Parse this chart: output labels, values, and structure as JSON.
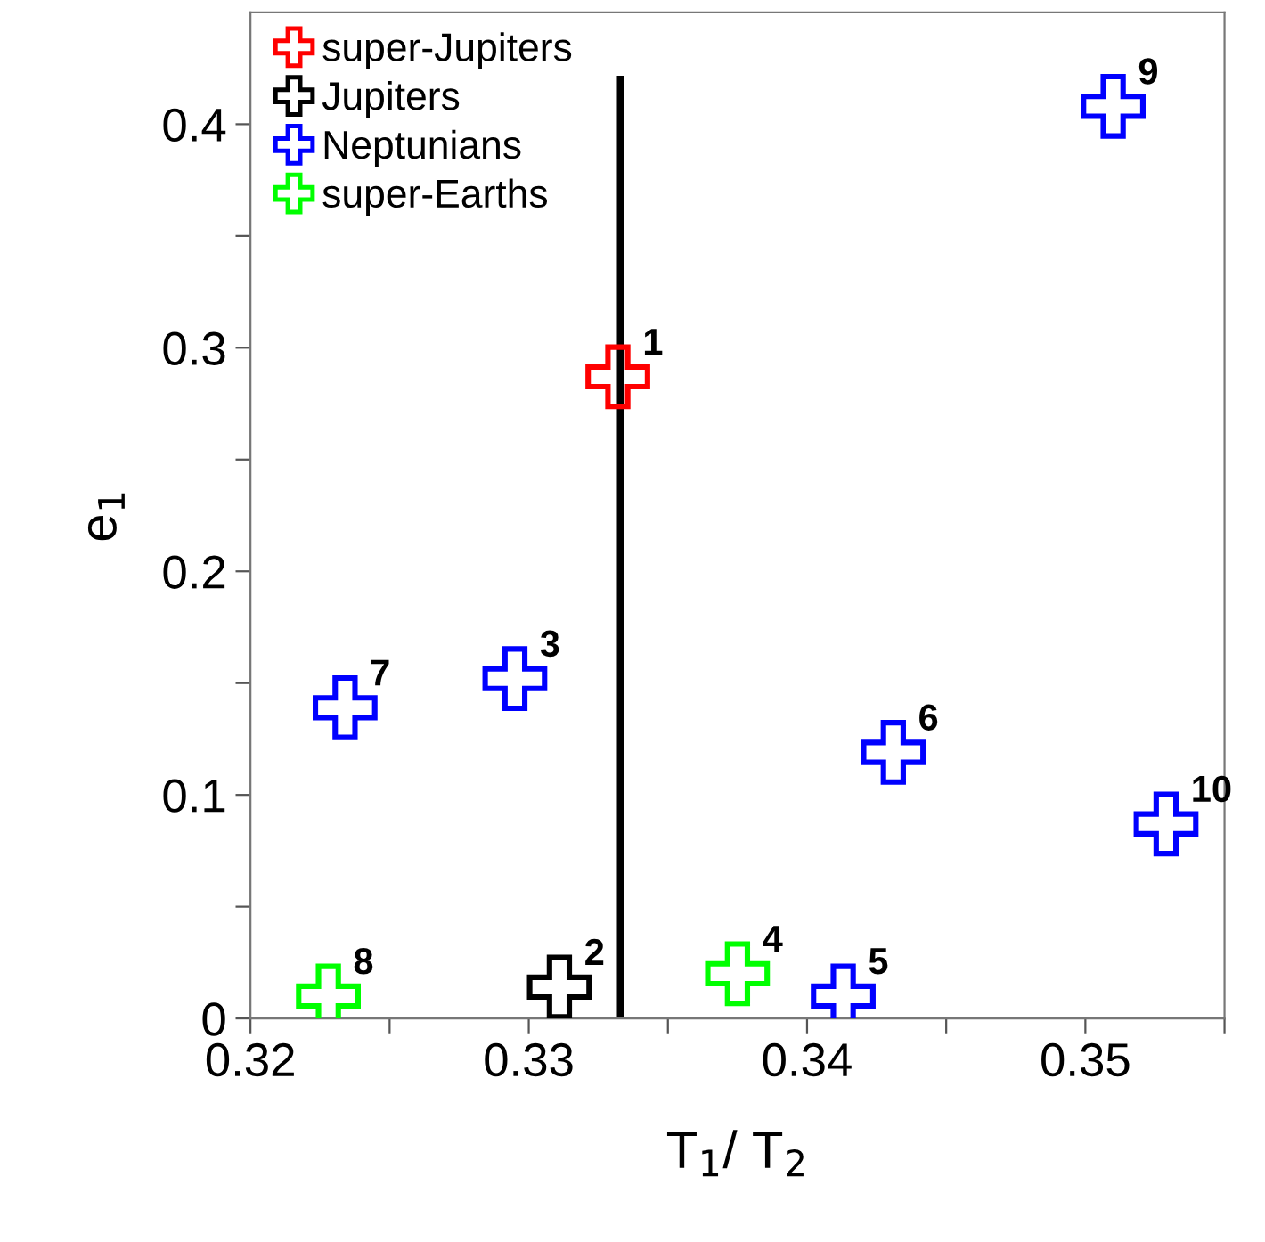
{
  "chart_data": {
    "type": "scatter",
    "xlabel": "T$_{1}$/ T$_{2}$",
    "ylabel": "e$_{1}$",
    "legend": "top left",
    "grid": false,
    "xlim": [
      0.32,
      0.355
    ],
    "ylim": [
      0,
      0.45
    ],
    "xticks": [
      0.32,
      {
        "value": 0.325,
        "label": null
      },
      0.33,
      {
        "value": 0.335,
        "label": null
      },
      0.34,
      {
        "value": 0.345,
        "label": null
      },
      0.35,
      {
        "value": 0.355,
        "label": null
      }
    ],
    "yticks": [
      0,
      {
        "value": 0.05,
        "label": null
      },
      0.1,
      {
        "value": 0.15,
        "label": null
      },
      0.2,
      {
        "value": 0.25,
        "label": null
      },
      0.3,
      {
        "value": 0.35,
        "label": null
      },
      0.4
    ],
    "series": [
      {
        "name": "super-Jupiters",
        "marker": "cross",
        "color": "#ff0000",
        "x": [
          0.3332
        ],
        "values": [
          0.287
        ]
      },
      {
        "name": "Jupiters",
        "marker": "cross",
        "color": "#000000",
        "x": [
          0.3311
        ],
        "values": [
          0.014
        ]
      },
      {
        "name": "Neptunians",
        "marker": "cross",
        "color": "#0000ff",
        "x": [
          0.3295,
          0.3413,
          0.3431,
          0.3234,
          0.351,
          0.3529
        ],
        "values": [
          0.152,
          0.01,
          0.119,
          0.139,
          0.408,
          0.087
        ]
      },
      {
        "name": "super-Earths",
        "marker": "cross",
        "color": "#00ff00",
        "x": [
          0.3375,
          0.3228
        ],
        "values": [
          0.02,
          0.01
        ]
      },
      {
        "type": "line",
        "marker": "none",
        "color": "#000000",
        "x": [
          0.3333,
          0.3333
        ],
        "values": [
          0,
          0.42
        ]
      }
    ],
    "annotations": [
      {
        "text": "1",
        "x": 0.3332,
        "y": 0.287
      },
      {
        "text": "2",
        "x": 0.3311,
        "y": 0.014
      },
      {
        "text": "3",
        "x": 0.3295,
        "y": 0.152
      },
      {
        "text": "4",
        "x": 0.3375,
        "y": 0.02
      },
      {
        "text": "5",
        "x": 0.3413,
        "y": 0.01
      },
      {
        "text": "6",
        "x": 0.3431,
        "y": 0.119
      },
      {
        "text": "7",
        "x": 0.3234,
        "y": 0.139
      },
      {
        "text": "8",
        "x": 0.3228,
        "y": 0.01
      },
      {
        "text": "9",
        "x": 0.351,
        "y": 0.408
      },
      {
        "text": "10",
        "x": 0.3529,
        "y": 0.087
      }
    ]
  }
}
